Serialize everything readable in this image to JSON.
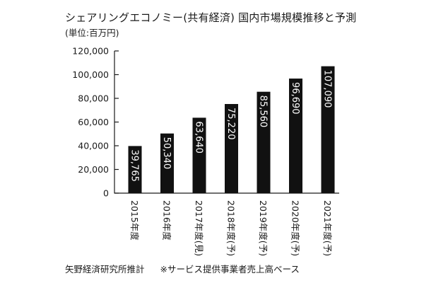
{
  "header": {
    "title": "シェアリングエコノミー(共有経済) 国内市場規模推移と予測",
    "unit": "(単位:百万円)"
  },
  "footer": {
    "source": "矢野経済研究所推計",
    "note": "※サービス提供事業者売上高ベース"
  },
  "chart_data": {
    "type": "bar",
    "title": "シェアリングエコノミー(共有経済) 国内市場規模推移と予測",
    "ylabel": "",
    "xlabel": "",
    "ylim": [
      0,
      120000
    ],
    "yticks": [
      0,
      20000,
      40000,
      60000,
      80000,
      100000,
      120000
    ],
    "ytick_labels": [
      "0",
      "20,000",
      "40,000",
      "60,000",
      "80,000",
      "100,000",
      "120,000"
    ],
    "categories": [
      "2015年度",
      "2016年度",
      "2017年度(見)",
      "2018年度(予)",
      "2019年度(予)",
      "2020年度(予)",
      "2021年度(予)"
    ],
    "values": [
      39765,
      50340,
      63640,
      75220,
      85560,
      96690,
      107090
    ],
    "value_labels": [
      "39,765",
      "50,340",
      "63,640",
      "75,220",
      "85,560",
      "96,690",
      "107,090"
    ],
    "bar_color": "#111111",
    "grid": false
  }
}
